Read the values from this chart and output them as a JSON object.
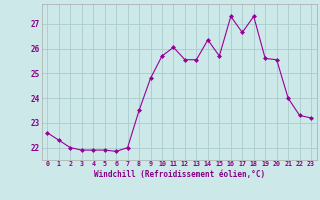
{
  "x": [
    0,
    1,
    2,
    3,
    4,
    5,
    6,
    7,
    8,
    9,
    10,
    11,
    12,
    13,
    14,
    15,
    16,
    17,
    18,
    19,
    20,
    21,
    22,
    23
  ],
  "y": [
    22.6,
    22.3,
    22.0,
    21.9,
    21.9,
    21.9,
    21.85,
    22.0,
    23.5,
    24.8,
    25.7,
    26.05,
    25.55,
    25.55,
    26.35,
    25.7,
    27.3,
    26.65,
    27.3,
    25.6,
    25.55,
    24.0,
    23.3,
    23.2
  ],
  "line_color": "#990099",
  "marker": "D",
  "marker_size": 2,
  "bg_color": "#cce8e8",
  "grid_color": "#aacccc",
  "xlabel": "Windchill (Refroidissement éolien,°C)",
  "xlabel_color": "#880088",
  "tick_color": "#880088",
  "ylim_min": 21.5,
  "ylim_max": 27.8,
  "yticks": [
    22,
    23,
    24,
    25,
    26,
    27
  ],
  "xticks": [
    0,
    1,
    2,
    3,
    4,
    5,
    6,
    7,
    8,
    9,
    10,
    11,
    12,
    13,
    14,
    15,
    16,
    17,
    18,
    19,
    20,
    21,
    22,
    23
  ]
}
